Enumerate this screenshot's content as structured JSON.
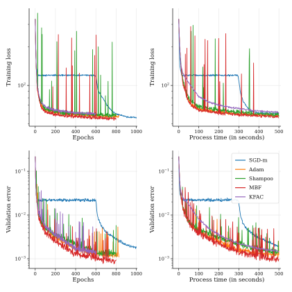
{
  "chart_data": [
    {
      "type": "line",
      "xlabel": "Epochs",
      "ylabel": "Training loss",
      "yscale": "log",
      "xlim": [
        -60,
        1010
      ],
      "ylim": [
        48,
        400
      ],
      "x_ticks": [
        0,
        200,
        400,
        600,
        800,
        1000
      ],
      "y_ticks": [
        {
          "value": 100,
          "base": "10",
          "exp": "2"
        }
      ],
      "grid": true,
      "legend": "none",
      "series": [
        {
          "name": "SGD-m",
          "color": "#1f77b4",
          "noise": 0.012,
          "x": [
            0,
            5,
            10,
            25,
            200,
            400,
            580,
            600,
            610,
            620,
            650,
            700,
            750,
            800,
            900,
            1000
          ],
          "y": [
            330,
            200,
            140,
            120,
            120,
            120,
            120,
            118,
            105,
            92,
            84,
            72,
            64,
            60,
            57,
            56
          ]
        },
        {
          "name": "Adam",
          "color": "#ff7f0e",
          "noise": 0.025,
          "x": [
            0,
            5,
            10,
            20,
            40,
            60,
            100,
            200,
            400,
            600,
            830
          ],
          "y": [
            330,
            200,
            140,
            95,
            78,
            70,
            64,
            61,
            59,
            58,
            57
          ]
        },
        {
          "name": "Shampoo",
          "color": "#2ca02c",
          "noise": 0.035,
          "spikes": 0.03,
          "x": [
            0,
            5,
            10,
            20,
            40,
            60,
            100,
            200,
            400,
            600,
            800
          ],
          "y": [
            330,
            200,
            140,
            100,
            80,
            72,
            66,
            62,
            60,
            59,
            58
          ]
        },
        {
          "name": "MBF",
          "color": "#d62728",
          "noise": 0.025,
          "spikes": 0.018,
          "x": [
            0,
            5,
            10,
            20,
            40,
            60,
            100,
            200,
            400,
            600,
            800
          ],
          "y": [
            330,
            200,
            140,
            95,
            76,
            68,
            62,
            59,
            57,
            56,
            55
          ]
        },
        {
          "name": "KFAC",
          "color": "#9467bd",
          "noise": 0.02,
          "x": [
            0,
            5,
            10,
            20,
            40,
            60,
            100,
            200,
            400,
            600
          ],
          "y": [
            330,
            200,
            140,
            100,
            82,
            74,
            68,
            64,
            61,
            60
          ]
        }
      ]
    },
    {
      "type": "line",
      "xlabel": "Process time (in seconds)",
      "ylabel": "Training loss",
      "yscale": "log",
      "xlim": [
        -30,
        510
      ],
      "ylim": [
        48,
        400
      ],
      "x_ticks": [
        0,
        100,
        200,
        300,
        400,
        500
      ],
      "y_ticks": [
        {
          "value": 100,
          "base": "10",
          "exp": "2"
        }
      ],
      "grid": true,
      "legend": "none",
      "series": [
        {
          "name": "SGD-m",
          "color": "#1f77b4",
          "noise": 0.012,
          "x": [
            0,
            3,
            6,
            15,
            100,
            200,
            295,
            300,
            305,
            310,
            320,
            340,
            360,
            400,
            500
          ],
          "y": [
            330,
            200,
            140,
            120,
            120,
            120,
            120,
            110,
            95,
            85,
            76,
            68,
            63,
            61,
            60
          ]
        },
        {
          "name": "Adam",
          "color": "#ff7f0e",
          "noise": 0.025,
          "x": [
            0,
            5,
            10,
            20,
            40,
            60,
            100,
            200,
            300,
            400,
            500
          ],
          "y": [
            330,
            200,
            150,
            110,
            82,
            72,
            65,
            62,
            60,
            59,
            58
          ]
        },
        {
          "name": "Shampoo",
          "color": "#2ca02c",
          "noise": 0.035,
          "spikes": 0.03,
          "x": [
            0,
            5,
            10,
            20,
            40,
            60,
            100,
            200,
            300,
            400,
            500
          ],
          "y": [
            330,
            200,
            150,
            110,
            86,
            76,
            68,
            64,
            62,
            60,
            59
          ]
        },
        {
          "name": "MBF",
          "color": "#d62728",
          "noise": 0.025,
          "spikes": 0.02,
          "x": [
            0,
            5,
            10,
            20,
            40,
            60,
            100,
            200,
            300,
            400,
            500
          ],
          "y": [
            330,
            200,
            150,
            105,
            80,
            70,
            64,
            61,
            59,
            58,
            57
          ]
        },
        {
          "name": "KFAC",
          "color": "#9467bd",
          "noise": 0.015,
          "x": [
            0,
            5,
            10,
            20,
            40,
            60,
            80,
            100,
            150,
            200,
            300,
            400,
            500
          ],
          "y": [
            330,
            200,
            150,
            125,
            110,
            100,
            90,
            82,
            74,
            70,
            66,
            63,
            62
          ]
        }
      ]
    },
    {
      "type": "line",
      "xlabel": "Epochs",
      "ylabel": "Validation error",
      "yscale": "log",
      "xlim": [
        -60,
        1010
      ],
      "ylim": [
        0.0006,
        0.3
      ],
      "x_ticks": [
        0,
        200,
        400,
        600,
        800,
        1000
      ],
      "y_ticks": [
        {
          "value": 0.1,
          "base": "10",
          "exp": "−1"
        },
        {
          "value": 0.01,
          "base": "10",
          "exp": "−2"
        },
        {
          "value": 0.001,
          "base": "10",
          "exp": "−3"
        }
      ],
      "grid": true,
      "legend": "none",
      "series": [
        {
          "name": "SGD-m",
          "color": "#1f77b4",
          "noise": 0.07,
          "x": [
            0,
            5,
            10,
            25,
            200,
            400,
            580,
            600,
            610,
            625,
            650,
            700,
            800,
            900,
            1000
          ],
          "y": [
            0.22,
            0.06,
            0.03,
            0.022,
            0.022,
            0.022,
            0.022,
            0.021,
            0.012,
            0.008,
            0.006,
            0.004,
            0.0028,
            0.0021,
            0.0018
          ]
        },
        {
          "name": "Adam",
          "color": "#ff7f0e",
          "noise": 0.12,
          "spikes": 0.03,
          "x": [
            0,
            5,
            10,
            30,
            60,
            100,
            200,
            300,
            400,
            600,
            830
          ],
          "y": [
            0.22,
            0.06,
            0.03,
            0.012,
            0.007,
            0.005,
            0.003,
            0.0023,
            0.0017,
            0.0013,
            0.0012
          ]
        },
        {
          "name": "Shampoo",
          "color": "#2ca02c",
          "noise": 0.15,
          "spikes": 0.06,
          "x": [
            0,
            5,
            10,
            30,
            60,
            100,
            200,
            300,
            400,
            600,
            800
          ],
          "y": [
            0.22,
            0.06,
            0.03,
            0.011,
            0.007,
            0.005,
            0.0035,
            0.0028,
            0.0022,
            0.0014,
            0.0013
          ]
        },
        {
          "name": "MBF",
          "color": "#d62728",
          "noise": 0.14,
          "spikes": 0.1,
          "x": [
            0,
            5,
            10,
            30,
            60,
            100,
            200,
            300,
            400,
            600,
            800
          ],
          "y": [
            0.22,
            0.06,
            0.03,
            0.01,
            0.006,
            0.004,
            0.0025,
            0.0018,
            0.0013,
            0.001,
            0.0009
          ]
        },
        {
          "name": "KFAC",
          "color": "#9467bd",
          "noise": 0.1,
          "spikes": 0.03,
          "x": [
            0,
            5,
            10,
            30,
            60,
            100,
            200,
            300,
            400,
            600
          ],
          "y": [
            0.22,
            0.06,
            0.03,
            0.012,
            0.008,
            0.0055,
            0.0035,
            0.0025,
            0.0017,
            0.0014
          ]
        }
      ]
    },
    {
      "type": "line",
      "xlabel": "Process time (in seconds)",
      "ylabel": "Validation error",
      "yscale": "log",
      "xlim": [
        -30,
        510
      ],
      "ylim": [
        0.0006,
        0.3
      ],
      "x_ticks": [
        0,
        100,
        200,
        300,
        400,
        500
      ],
      "y_ticks": [
        {
          "value": 0.1,
          "base": "10",
          "exp": "−1"
        },
        {
          "value": 0.01,
          "base": "10",
          "exp": "−2"
        },
        {
          "value": 0.001,
          "base": "10",
          "exp": "−3"
        }
      ],
      "grid": true,
      "legend": "top-right",
      "series": [
        {
          "name": "SGD-m",
          "color": "#1f77b4",
          "noise": 0.07,
          "x": [
            0,
            3,
            6,
            15,
            100,
            200,
            295,
            300,
            305,
            310,
            320,
            340,
            360,
            400,
            450,
            500
          ],
          "y": [
            0.22,
            0.06,
            0.03,
            0.022,
            0.022,
            0.022,
            0.022,
            0.02,
            0.013,
            0.009,
            0.0065,
            0.005,
            0.004,
            0.003,
            0.0024,
            0.0019
          ]
        },
        {
          "name": "Adam",
          "color": "#ff7f0e",
          "noise": 0.12,
          "spikes": 0.03,
          "x": [
            0,
            5,
            10,
            20,
            40,
            60,
            100,
            200,
            300,
            400,
            500
          ],
          "y": [
            0.22,
            0.06,
            0.03,
            0.015,
            0.009,
            0.006,
            0.0042,
            0.0025,
            0.0016,
            0.0013,
            0.0012
          ]
        },
        {
          "name": "Shampoo",
          "color": "#2ca02c",
          "noise": 0.15,
          "spikes": 0.06,
          "x": [
            0,
            5,
            10,
            20,
            40,
            60,
            100,
            200,
            300,
            400,
            500
          ],
          "y": [
            0.22,
            0.06,
            0.03,
            0.015,
            0.009,
            0.0065,
            0.0045,
            0.003,
            0.0022,
            0.0016,
            0.0014
          ]
        },
        {
          "name": "MBF",
          "color": "#d62728",
          "noise": 0.14,
          "spikes": 0.1,
          "x": [
            0,
            5,
            10,
            20,
            40,
            60,
            100,
            200,
            300,
            400,
            500
          ],
          "y": [
            0.22,
            0.06,
            0.03,
            0.014,
            0.008,
            0.0055,
            0.0038,
            0.0022,
            0.0014,
            0.0011,
            0.00095
          ]
        },
        {
          "name": "KFAC",
          "color": "#9467bd",
          "noise": 0.05,
          "x": [
            0,
            5,
            10,
            20,
            40,
            60,
            80,
            100,
            150,
            200,
            300,
            400,
            500
          ],
          "y": [
            0.22,
            0.06,
            0.035,
            0.025,
            0.02,
            0.015,
            0.011,
            0.008,
            0.005,
            0.0035,
            0.0022,
            0.0017,
            0.0015
          ]
        }
      ]
    }
  ]
}
